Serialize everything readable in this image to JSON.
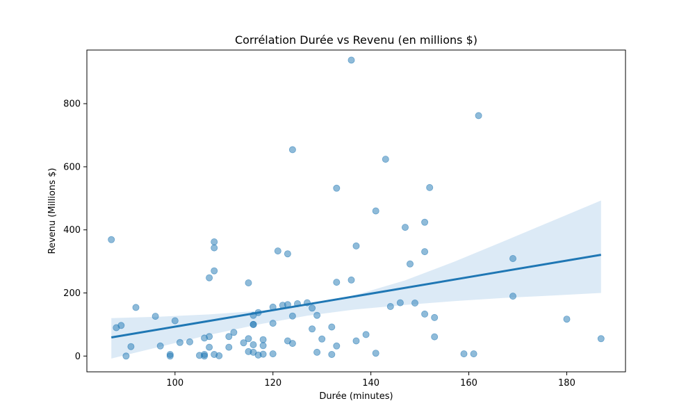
{
  "chart_data": {
    "type": "scatter",
    "title": "Corrélation Durée vs Revenu (en millions $)",
    "xlabel": "Durée (minutes)",
    "ylabel": "Revenu (Millions $)",
    "xlim": [
      82,
      192
    ],
    "ylim": [
      -50,
      970
    ],
    "xticks": [
      100,
      120,
      140,
      160,
      180
    ],
    "yticks": [
      0,
      200,
      400,
      600,
      800
    ],
    "grid": false,
    "point_color": "#1f77b4",
    "band_color": "#d6e6f4",
    "regression": {
      "x": [
        87,
        187
      ],
      "y": [
        59,
        321
      ],
      "band": [
        {
          "x": 87,
          "lo": -8,
          "hi": 120
        },
        {
          "x": 97,
          "lo": 30,
          "hi": 125
        },
        {
          "x": 107,
          "lo": 67,
          "hi": 132
        },
        {
          "x": 117,
          "lo": 100,
          "hi": 143
        },
        {
          "x": 127,
          "lo": 128,
          "hi": 162
        },
        {
          "x": 137,
          "lo": 148,
          "hi": 194
        },
        {
          "x": 147,
          "lo": 162,
          "hi": 240
        },
        {
          "x": 157,
          "lo": 174,
          "hi": 299
        },
        {
          "x": 167,
          "lo": 184,
          "hi": 363
        },
        {
          "x": 177,
          "lo": 192,
          "hi": 428
        },
        {
          "x": 187,
          "lo": 200,
          "hi": 493
        }
      ]
    },
    "points": [
      [
        87,
        369
      ],
      [
        88,
        90
      ],
      [
        89,
        97
      ],
      [
        90,
        0
      ],
      [
        91,
        30
      ],
      [
        92,
        154
      ],
      [
        96,
        126
      ],
      [
        97,
        32
      ],
      [
        99,
        5
      ],
      [
        99,
        0
      ],
      [
        100,
        112
      ],
      [
        101,
        43
      ],
      [
        103,
        45
      ],
      [
        105,
        2
      ],
      [
        106,
        57
      ],
      [
        106,
        5
      ],
      [
        106,
        0
      ],
      [
        107,
        62
      ],
      [
        107,
        28
      ],
      [
        107,
        248
      ],
      [
        108,
        362
      ],
      [
        108,
        343
      ],
      [
        108,
        270
      ],
      [
        108,
        5
      ],
      [
        109,
        1
      ],
      [
        111,
        62
      ],
      [
        111,
        28
      ],
      [
        112,
        75
      ],
      [
        114,
        42
      ],
      [
        115,
        232
      ],
      [
        115,
        55
      ],
      [
        115,
        14
      ],
      [
        116,
        129
      ],
      [
        116,
        100
      ],
      [
        116,
        100
      ],
      [
        116,
        36
      ],
      [
        116,
        12
      ],
      [
        117,
        138
      ],
      [
        117,
        3
      ],
      [
        118,
        52
      ],
      [
        118,
        33
      ],
      [
        118,
        6
      ],
      [
        120,
        155
      ],
      [
        120,
        104
      ],
      [
        120,
        7
      ],
      [
        121,
        333
      ],
      [
        122,
        161
      ],
      [
        123,
        324
      ],
      [
        123,
        163
      ],
      [
        123,
        48
      ],
      [
        124,
        654
      ],
      [
        124,
        127
      ],
      [
        124,
        40
      ],
      [
        125,
        166
      ],
      [
        127,
        169
      ],
      [
        128,
        152
      ],
      [
        128,
        86
      ],
      [
        129,
        129
      ],
      [
        129,
        12
      ],
      [
        130,
        54
      ],
      [
        132,
        92
      ],
      [
        132,
        5
      ],
      [
        133,
        532
      ],
      [
        133,
        234
      ],
      [
        133,
        32
      ],
      [
        136,
        938
      ],
      [
        136,
        241
      ],
      [
        137,
        349
      ],
      [
        137,
        48
      ],
      [
        139,
        68
      ],
      [
        141,
        460
      ],
      [
        141,
        9
      ],
      [
        143,
        624
      ],
      [
        144,
        157
      ],
      [
        146,
        169
      ],
      [
        147,
        408
      ],
      [
        148,
        292
      ],
      [
        149,
        168
      ],
      [
        151,
        424
      ],
      [
        151,
        331
      ],
      [
        151,
        133
      ],
      [
        152,
        534
      ],
      [
        153,
        122
      ],
      [
        153,
        61
      ],
      [
        159,
        7
      ],
      [
        161,
        7
      ],
      [
        162,
        762
      ],
      [
        169,
        309
      ],
      [
        169,
        190
      ],
      [
        180,
        117
      ],
      [
        187,
        55
      ]
    ]
  }
}
